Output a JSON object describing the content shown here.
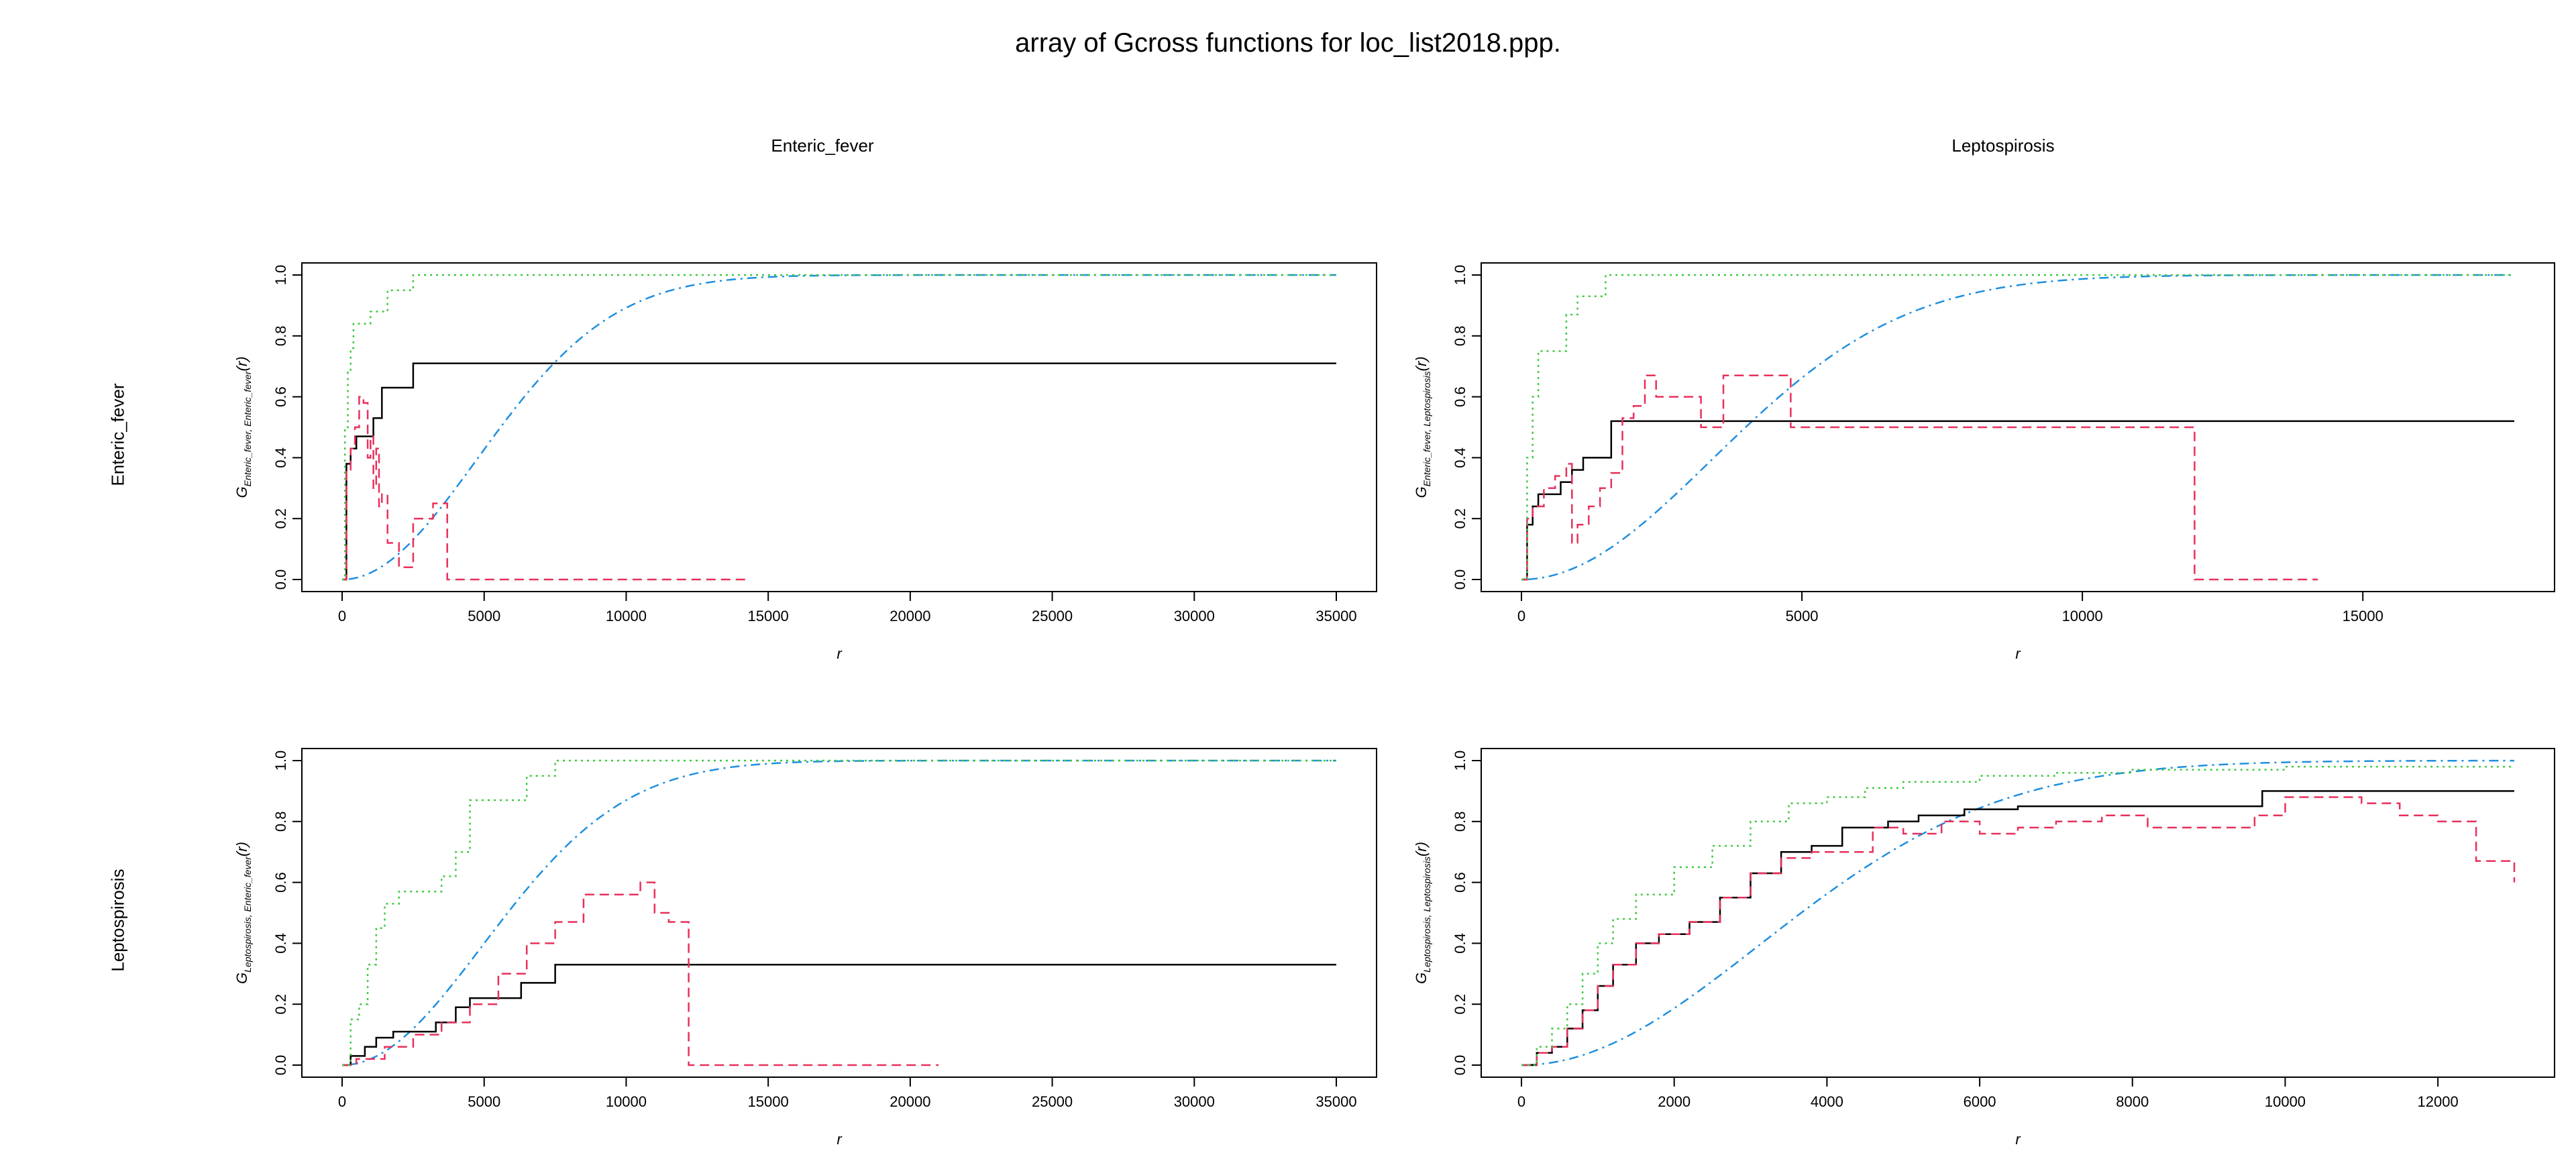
{
  "title": "array of Gcross functions for loc_list2018.ppp.",
  "column_headers": [
    "Enteric_fever",
    "Leptospirosis"
  ],
  "row_headers": [
    "Enteric_fever",
    "Leptospirosis"
  ],
  "colors": {
    "obs": "#000000",
    "theo": "#1e8fe0",
    "han": "#e8305a",
    "rs": "#3ec93e"
  },
  "chart_data": [
    {
      "type": "line",
      "row": "Enteric_fever",
      "col": "Enteric_fever",
      "xlabel": "r",
      "ylabel_main": "G",
      "ylabel_sub": "Enteric_fever, Enteric_fever",
      "ylabel_arg": "(r)",
      "xlim": [
        0,
        35000
      ],
      "ylim": [
        0,
        1
      ],
      "xticks": [
        0,
        5000,
        10000,
        15000,
        20000,
        25000,
        30000,
        35000
      ],
      "yticks": [
        "0.0",
        "0.2",
        "0.4",
        "0.6",
        "0.8",
        "1.0"
      ],
      "theo_scale": 6700,
      "series": [
        {
          "key": "obs",
          "style": "solid",
          "x": [
            0,
            150,
            300,
            500,
            800,
            1100,
            1400,
            1800,
            2500,
            35000
          ],
          "y": [
            0,
            0.38,
            0.43,
            0.47,
            0.47,
            0.53,
            0.63,
            0.63,
            0.71,
            0.71
          ]
        },
        {
          "key": "han",
          "style": "dashed",
          "x": [
            0,
            150,
            300,
            450,
            600,
            750,
            900,
            1000,
            1100,
            1200,
            1300,
            1400,
            1600,
            2000,
            2500,
            3200,
            3700,
            14300
          ],
          "y": [
            0,
            0.36,
            0.43,
            0.5,
            0.6,
            0.58,
            0.4,
            0.47,
            0.3,
            0.43,
            0.24,
            0.28,
            0.12,
            0.04,
            0.2,
            0.25,
            0.0,
            0.0
          ]
        },
        {
          "key": "rs",
          "style": "dotted",
          "x": [
            0,
            100,
            200,
            300,
            400,
            600,
            1000,
            1600,
            2500,
            3000,
            35000
          ],
          "y": [
            0,
            0.5,
            0.68,
            0.76,
            0.84,
            0.84,
            0.88,
            0.95,
            1.0,
            1.0,
            1.0
          ]
        }
      ]
    },
    {
      "type": "line",
      "row": "Enteric_fever",
      "col": "Leptospirosis",
      "xlabel": "r",
      "ylabel_main": "G",
      "ylabel_sub": "Enteric_fever, Leptospirosis",
      "ylabel_arg": "(r)",
      "xlim": [
        0,
        17700
      ],
      "ylim": [
        0,
        1
      ],
      "xticks": [
        0,
        5000,
        10000,
        15000
      ],
      "yticks": [
        "0.0",
        "0.2",
        "0.4",
        "0.6",
        "0.8",
        "1.0"
      ],
      "theo_scale": 4800,
      "series": [
        {
          "key": "obs",
          "style": "solid",
          "x": [
            0,
            100,
            200,
            300,
            500,
            700,
            900,
            1100,
            1500,
            1600,
            17700
          ],
          "y": [
            0,
            0.18,
            0.24,
            0.28,
            0.28,
            0.32,
            0.36,
            0.4,
            0.4,
            0.52,
            0.52
          ]
        },
        {
          "key": "han",
          "style": "dashed",
          "x": [
            0,
            100,
            200,
            400,
            600,
            800,
            900,
            1000,
            1200,
            1400,
            1600,
            1800,
            2000,
            2200,
            2400,
            2800,
            3200,
            3600,
            4000,
            4800,
            5500,
            11500,
            12000,
            14200
          ],
          "y": [
            0,
            0.2,
            0.24,
            0.3,
            0.34,
            0.38,
            0.12,
            0.18,
            0.24,
            0.3,
            0.35,
            0.53,
            0.57,
            0.67,
            0.6,
            0.6,
            0.5,
            0.67,
            0.67,
            0.5,
            0.5,
            0.5,
            0.0,
            0.0
          ]
        },
        {
          "key": "rs",
          "style": "dotted",
          "x": [
            0,
            100,
            200,
            300,
            500,
            800,
            1000,
            1500,
            2000,
            17700
          ],
          "y": [
            0,
            0.4,
            0.6,
            0.75,
            0.75,
            0.87,
            0.93,
            1.0,
            1.0,
            1.0
          ]
        }
      ]
    },
    {
      "type": "line",
      "row": "Leptospirosis",
      "col": "Enteric_fever",
      "xlabel": "r",
      "ylabel_main": "G",
      "ylabel_sub": "Leptospirosis, Enteric_fever",
      "ylabel_arg": "(r)",
      "xlim": [
        0,
        35000
      ],
      "ylim": [
        0,
        1
      ],
      "xticks": [
        0,
        5000,
        10000,
        15000,
        20000,
        25000,
        30000,
        35000
      ],
      "yticks": [
        "0.0",
        "0.2",
        "0.4",
        "0.6",
        "0.8",
        "1.0"
      ],
      "theo_scale": 7000,
      "series": [
        {
          "key": "obs",
          "style": "solid",
          "x": [
            0,
            300,
            800,
            1200,
            1800,
            2500,
            3300,
            4000,
            4500,
            6300,
            7500,
            35000
          ],
          "y": [
            0,
            0.03,
            0.06,
            0.09,
            0.11,
            0.11,
            0.14,
            0.19,
            0.22,
            0.27,
            0.33,
            0.33
          ]
        },
        {
          "key": "han",
          "style": "dashed",
          "x": [
            0,
            500,
            1500,
            2500,
            3500,
            4500,
            5500,
            6500,
            7500,
            8500,
            10000,
            10500,
            11000,
            11500,
            12200,
            21000
          ],
          "y": [
            0,
            0.02,
            0.06,
            0.1,
            0.14,
            0.2,
            0.3,
            0.4,
            0.47,
            0.56,
            0.56,
            0.6,
            0.5,
            0.47,
            0.0,
            0.0
          ]
        },
        {
          "key": "rs",
          "style": "dotted",
          "x": [
            0,
            300,
            600,
            900,
            1200,
            1500,
            2000,
            3000,
            3500,
            4000,
            4500,
            6000,
            6500,
            7000,
            7500,
            35000
          ],
          "y": [
            0,
            0.15,
            0.2,
            0.33,
            0.45,
            0.53,
            0.57,
            0.57,
            0.62,
            0.7,
            0.87,
            0.87,
            0.95,
            0.95,
            1.0,
            1.0
          ]
        }
      ]
    },
    {
      "type": "line",
      "row": "Leptospirosis",
      "col": "Leptospirosis",
      "xlabel": "r",
      "ylabel_main": "G",
      "ylabel_sub": "Leptospirosis, Leptospirosis",
      "ylabel_arg": "(r)",
      "xlim": [
        0,
        13000
      ],
      "ylim": [
        0,
        1
      ],
      "xticks": [
        0,
        2000,
        4000,
        6000,
        8000,
        10000,
        12000
      ],
      "yticks": [
        "0.0",
        "0.2",
        "0.4",
        "0.6",
        "0.8",
        "1.0"
      ],
      "theo_scale": 4400,
      "series": [
        {
          "key": "obs",
          "style": "solid",
          "x": [
            0,
            200,
            400,
            600,
            800,
            1000,
            1200,
            1500,
            1800,
            2200,
            2600,
            3000,
            3400,
            3800,
            4200,
            4800,
            5200,
            5800,
            6500,
            7500,
            8500,
            9600,
            9700,
            13000
          ],
          "y": [
            0,
            0.04,
            0.06,
            0.12,
            0.18,
            0.26,
            0.33,
            0.4,
            0.43,
            0.47,
            0.55,
            0.63,
            0.7,
            0.72,
            0.78,
            0.8,
            0.82,
            0.84,
            0.85,
            0.85,
            0.85,
            0.85,
            0.9,
            0.9
          ]
        },
        {
          "key": "han",
          "style": "dashed",
          "x": [
            0,
            200,
            400,
            600,
            800,
            1000,
            1200,
            1500,
            1800,
            2200,
            2600,
            3000,
            3400,
            3800,
            4200,
            4600,
            5000,
            5500,
            6000,
            6500,
            7000,
            7600,
            8200,
            9000,
            9600,
            10000,
            10500,
            11000,
            11500,
            12000,
            12500,
            12800,
            13000
          ],
          "y": [
            0,
            0.04,
            0.06,
            0.12,
            0.18,
            0.26,
            0.33,
            0.4,
            0.43,
            0.47,
            0.55,
            0.63,
            0.68,
            0.7,
            0.7,
            0.78,
            0.76,
            0.8,
            0.76,
            0.78,
            0.8,
            0.82,
            0.78,
            0.78,
            0.82,
            0.88,
            0.88,
            0.86,
            0.82,
            0.8,
            0.67,
            0.67,
            0.6
          ]
        },
        {
          "key": "rs",
          "style": "dotted",
          "x": [
            0,
            200,
            400,
            600,
            800,
            1000,
            1200,
            1500,
            2000,
            2500,
            3000,
            3500,
            4000,
            4500,
            5000,
            6000,
            7000,
            8000,
            9000,
            10000,
            13000
          ],
          "y": [
            0,
            0.06,
            0.12,
            0.2,
            0.3,
            0.4,
            0.48,
            0.56,
            0.65,
            0.72,
            0.8,
            0.86,
            0.88,
            0.91,
            0.93,
            0.95,
            0.96,
            0.97,
            0.97,
            0.98,
            0.98
          ]
        }
      ]
    }
  ]
}
